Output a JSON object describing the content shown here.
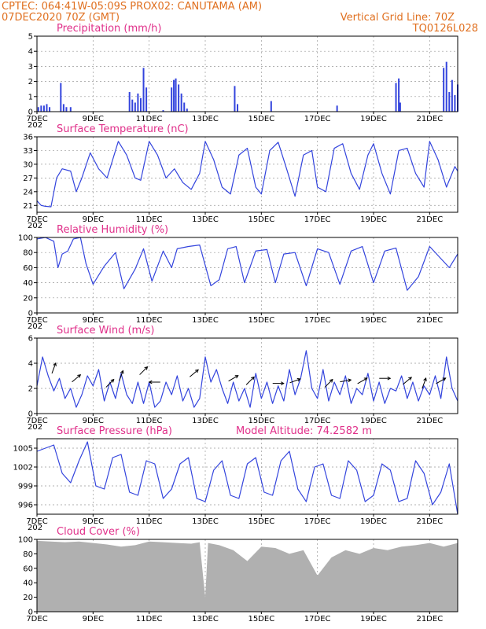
{
  "header": {
    "line1": "CPTEC:    064:41W-05:09S   PROX02: CANUTAMA (AM)",
    "line2_left": "07DEC2020 70Z (GMT)",
    "line2_right": "Vertical Grid Line: 70Z",
    "line3_right": "TQ0126L028"
  },
  "x_axis": {
    "tick_labels": [
      "7DEC",
      "9DEC",
      "11DEC",
      "13DEC",
      "15DEC",
      "17DEC",
      "19DEC",
      "21DEC"
    ],
    "tick_days": [
      0,
      2,
      4,
      6,
      8,
      10,
      12,
      14
    ],
    "range_days": [
      0,
      15
    ],
    "year_marker": "202"
  },
  "colors": {
    "line": "#3344dd",
    "cloud": "#b0b0b0",
    "header": "#e07020",
    "title": "#e0308a"
  },
  "chart_data": [
    {
      "type": "bar",
      "title": "Precipitation (mm/h)",
      "ylim": [
        0,
        5
      ],
      "yticks": [
        "0",
        "1",
        "2",
        "3",
        "4",
        "5"
      ],
      "grid": true,
      "bars": [
        {
          "t": 0.05,
          "v": 0.3
        },
        {
          "t": 0.15,
          "v": 0.4
        },
        {
          "t": 0.25,
          "v": 0.4
        },
        {
          "t": 0.35,
          "v": 0.5
        },
        {
          "t": 0.45,
          "v": 0.3
        },
        {
          "t": 0.85,
          "v": 1.9
        },
        {
          "t": 0.95,
          "v": 0.5
        },
        {
          "t": 1.05,
          "v": 0.3
        },
        {
          "t": 1.2,
          "v": 0.3
        },
        {
          "t": 3.3,
          "v": 1.3
        },
        {
          "t": 3.4,
          "v": 0.8
        },
        {
          "t": 3.5,
          "v": 0.6
        },
        {
          "t": 3.6,
          "v": 1.2
        },
        {
          "t": 3.7,
          "v": 0.9
        },
        {
          "t": 3.8,
          "v": 2.9
        },
        {
          "t": 3.9,
          "v": 1.6
        },
        {
          "t": 4.5,
          "v": 0.1
        },
        {
          "t": 4.8,
          "v": 1.6
        },
        {
          "t": 4.88,
          "v": 2.1
        },
        {
          "t": 4.95,
          "v": 2.2
        },
        {
          "t": 5.05,
          "v": 1.8
        },
        {
          "t": 5.15,
          "v": 1.2
        },
        {
          "t": 5.25,
          "v": 0.6
        },
        {
          "t": 5.35,
          "v": 0.2
        },
        {
          "t": 7.05,
          "v": 1.7
        },
        {
          "t": 7.15,
          "v": 0.5
        },
        {
          "t": 8.35,
          "v": 0.7
        },
        {
          "t": 10.7,
          "v": 0.4
        },
        {
          "t": 12.8,
          "v": 1.9
        },
        {
          "t": 12.9,
          "v": 2.2
        },
        {
          "t": 12.95,
          "v": 0.6
        },
        {
          "t": 14.5,
          "v": 2.9
        },
        {
          "t": 14.6,
          "v": 3.3
        },
        {
          "t": 14.7,
          "v": 1.3
        },
        {
          "t": 14.8,
          "v": 2.1
        },
        {
          "t": 14.9,
          "v": 1.1
        },
        {
          "t": 15.0,
          "v": 1.8
        }
      ]
    },
    {
      "type": "line",
      "title": "Surface Temperature (nC)",
      "ylim": [
        19.5,
        36
      ],
      "yticks": [
        "21",
        "24",
        "27",
        "30",
        "33",
        "36"
      ],
      "grid": true,
      "x_days": [
        0,
        0.15,
        0.3,
        0.5,
        0.7,
        0.9,
        1.2,
        1.4,
        1.6,
        1.9,
        2.2,
        2.5,
        2.9,
        3.2,
        3.5,
        3.7,
        4.0,
        4.3,
        4.6,
        4.9,
        5.2,
        5.5,
        5.8,
        6.0,
        6.3,
        6.6,
        6.9,
        7.2,
        7.5,
        7.8,
        8.0,
        8.3,
        8.6,
        8.9,
        9.2,
        9.5,
        9.8,
        10.0,
        10.3,
        10.6,
        10.9,
        11.2,
        11.5,
        11.8,
        12.0,
        12.3,
        12.6,
        12.9,
        13.2,
        13.5,
        13.8,
        14.0,
        14.3,
        14.6,
        14.9,
        15.0
      ],
      "values": [
        22,
        21,
        20.8,
        20.7,
        27,
        29,
        28.5,
        24,
        27,
        32.5,
        29,
        27,
        35,
        32,
        27,
        26.5,
        35,
        32,
        27,
        29,
        26,
        24.5,
        28,
        35,
        31,
        25,
        23.5,
        32,
        33.5,
        25,
        23.5,
        33,
        34.8,
        29,
        23,
        32,
        33,
        25,
        24,
        33.5,
        34.5,
        28,
        24.5,
        32,
        34.5,
        28,
        23.5,
        33,
        33.5,
        28,
        25,
        35,
        31,
        25,
        29.5,
        28.5
      ]
    },
    {
      "type": "line",
      "title": "Relative Humidity (%)",
      "ylim": [
        0,
        100
      ],
      "yticks": [
        "0",
        "20",
        "40",
        "60",
        "80",
        "100"
      ],
      "grid": true,
      "x_days": [
        0,
        0.3,
        0.6,
        0.75,
        0.9,
        1.1,
        1.3,
        1.55,
        1.75,
        2.0,
        2.4,
        2.8,
        3.1,
        3.5,
        3.8,
        4.1,
        4.5,
        4.8,
        5.0,
        5.4,
        5.8,
        6.2,
        6.5,
        6.8,
        7.1,
        7.4,
        7.8,
        8.2,
        8.5,
        8.8,
        9.2,
        9.6,
        10.0,
        10.4,
        10.8,
        11.2,
        11.6,
        12.0,
        12.4,
        12.8,
        13.2,
        13.6,
        14.0,
        14.4,
        14.7,
        15.0
      ],
      "values": [
        98,
        100,
        95,
        60,
        78,
        82,
        98,
        100,
        65,
        38,
        62,
        80,
        32,
        58,
        85,
        42,
        82,
        60,
        85,
        88,
        90,
        36,
        44,
        85,
        88,
        40,
        82,
        84,
        40,
        78,
        80,
        36,
        85,
        80,
        38,
        82,
        88,
        40,
        82,
        86,
        30,
        48,
        88,
        72,
        60,
        78
      ]
    },
    {
      "type": "line",
      "title": "Surface Wind (m/s)",
      "ylim": [
        0,
        6
      ],
      "yticks": [
        "0",
        "2",
        "4",
        "6"
      ],
      "grid": true,
      "x_days": [
        0,
        0.2,
        0.4,
        0.6,
        0.8,
        1.0,
        1.2,
        1.4,
        1.6,
        1.8,
        2.0,
        2.2,
        2.4,
        2.6,
        2.8,
        3.0,
        3.2,
        3.4,
        3.6,
        3.8,
        4.0,
        4.2,
        4.4,
        4.6,
        4.8,
        5.0,
        5.2,
        5.4,
        5.6,
        5.8,
        6.0,
        6.2,
        6.4,
        6.6,
        6.8,
        7.0,
        7.2,
        7.4,
        7.6,
        7.8,
        8.0,
        8.2,
        8.4,
        8.6,
        8.8,
        9.0,
        9.2,
        9.4,
        9.6,
        9.8,
        10.0,
        10.2,
        10.4,
        10.6,
        10.8,
        11.0,
        11.2,
        11.4,
        11.6,
        11.8,
        12.0,
        12.2,
        12.4,
        12.6,
        12.8,
        13.0,
        13.2,
        13.4,
        13.6,
        13.8,
        14.0,
        14.2,
        14.4,
        14.6,
        14.8,
        15.0
      ],
      "values": [
        2.2,
        4.5,
        3.0,
        1.8,
        2.8,
        1.2,
        2.0,
        0.5,
        1.5,
        3.0,
        2.2,
        3.5,
        1.0,
        2.5,
        1.2,
        3.2,
        1.5,
        0.8,
        2.5,
        0.8,
        2.5,
        0.5,
        1.0,
        2.5,
        1.5,
        3.0,
        1.0,
        2.0,
        0.5,
        1.2,
        4.5,
        2.5,
        3.5,
        2.0,
        0.8,
        2.5,
        1.0,
        2.0,
        0.5,
        3.2,
        1.2,
        2.5,
        0.8,
        2.2,
        1.0,
        3.5,
        1.5,
        2.8,
        5.0,
        2.0,
        1.2,
        3.5,
        1.0,
        2.5,
        1.5,
        3.0,
        0.8,
        2.0,
        1.5,
        3.2,
        1.0,
        2.5,
        0.8,
        2.0,
        1.8,
        3.0,
        1.2,
        2.5,
        1.0,
        2.2,
        1.5,
        3.0,
        1.2,
        4.5,
        2.0,
        1.0
      ],
      "arrows": [
        {
          "t": 0.6,
          "speed": 3.6,
          "dir": 200
        },
        {
          "t": 1.4,
          "speed": 2.8,
          "dir": 230
        },
        {
          "t": 2.6,
          "speed": 2.4,
          "dir": 225
        },
        {
          "t": 3.0,
          "speed": 3.0,
          "dir": 200
        },
        {
          "t": 3.8,
          "speed": 3.4,
          "dir": 225
        },
        {
          "t": 4.2,
          "speed": 2.5,
          "dir": 90
        },
        {
          "t": 5.6,
          "speed": 3.2,
          "dir": 230
        },
        {
          "t": 7.0,
          "speed": 2.8,
          "dir": 240
        },
        {
          "t": 7.6,
          "speed": 2.6,
          "dir": 225
        },
        {
          "t": 8.6,
          "speed": 2.4,
          "dir": 270
        },
        {
          "t": 9.2,
          "speed": 2.6,
          "dir": 250
        },
        {
          "t": 10.4,
          "speed": 2.4,
          "dir": 225
        },
        {
          "t": 11.0,
          "speed": 2.6,
          "dir": 260
        },
        {
          "t": 11.6,
          "speed": 2.6,
          "dir": 240
        },
        {
          "t": 12.4,
          "speed": 2.8,
          "dir": 270
        },
        {
          "t": 13.2,
          "speed": 2.6,
          "dir": 230
        },
        {
          "t": 13.8,
          "speed": 2.4,
          "dir": 200
        },
        {
          "t": 14.4,
          "speed": 2.6,
          "dir": 240
        }
      ]
    },
    {
      "type": "line",
      "title": "Surface Pressure (hPa)",
      "annotation": "Model Altitude: 74.2582 m",
      "ylim": [
        994.5,
        1006.5
      ],
      "yticks": [
        "996",
        "999",
        "1002",
        "1005"
      ],
      "grid": true,
      "x_days": [
        0,
        0.3,
        0.6,
        0.9,
        1.2,
        1.5,
        1.8,
        2.1,
        2.4,
        2.7,
        3.0,
        3.3,
        3.6,
        3.9,
        4.2,
        4.5,
        4.8,
        5.1,
        5.4,
        5.7,
        6.0,
        6.3,
        6.6,
        6.9,
        7.2,
        7.5,
        7.8,
        8.1,
        8.4,
        8.7,
        9.0,
        9.3,
        9.6,
        9.9,
        10.2,
        10.5,
        10.8,
        11.1,
        11.4,
        11.7,
        12.0,
        12.3,
        12.6,
        12.9,
        13.2,
        13.5,
        13.8,
        14.1,
        14.4,
        14.7,
        15.0
      ],
      "values": [
        1004.5,
        1005.0,
        1005.5,
        1001.0,
        999.5,
        1003.0,
        1006.0,
        999.0,
        998.5,
        1003.5,
        1004.0,
        998.0,
        997.5,
        1003.0,
        1002.5,
        997.0,
        998.5,
        1002.5,
        1003.5,
        997.0,
        996.5,
        1001.5,
        1003.0,
        997.5,
        997.0,
        1002.5,
        1003.5,
        998.0,
        997.5,
        1003.0,
        1004.5,
        998.5,
        996.5,
        1002.0,
        1002.5,
        997.5,
        997.0,
        1003.0,
        1001.5,
        996.5,
        997.5,
        1002.5,
        1001.5,
        996.5,
        997.0,
        1003.0,
        1001.0,
        996.0,
        998.0,
        1002.5,
        994.5
      ]
    },
    {
      "type": "area",
      "title": "Cloud Cover (%)",
      "ylim": [
        0,
        100
      ],
      "yticks": [
        "0",
        "20",
        "40",
        "60",
        "80",
        "100"
      ],
      "grid": false,
      "x_days": [
        0,
        0.5,
        1.0,
        1.5,
        2.0,
        2.5,
        3.0,
        3.5,
        4.0,
        4.5,
        5.0,
        5.5,
        5.8,
        6.0,
        6.1,
        6.5,
        7.0,
        7.5,
        8.0,
        8.5,
        9.0,
        9.5,
        10.0,
        10.5,
        11.0,
        11.5,
        12.0,
        12.5,
        13.0,
        13.5,
        14.0,
        14.5,
        15.0
      ],
      "values": [
        98,
        97,
        96,
        97,
        95,
        93,
        90,
        92,
        97,
        96,
        95,
        94,
        96,
        20,
        95,
        92,
        85,
        70,
        90,
        88,
        80,
        85,
        50,
        75,
        85,
        80,
        88,
        85,
        90,
        92,
        95,
        90,
        95
      ]
    }
  ]
}
